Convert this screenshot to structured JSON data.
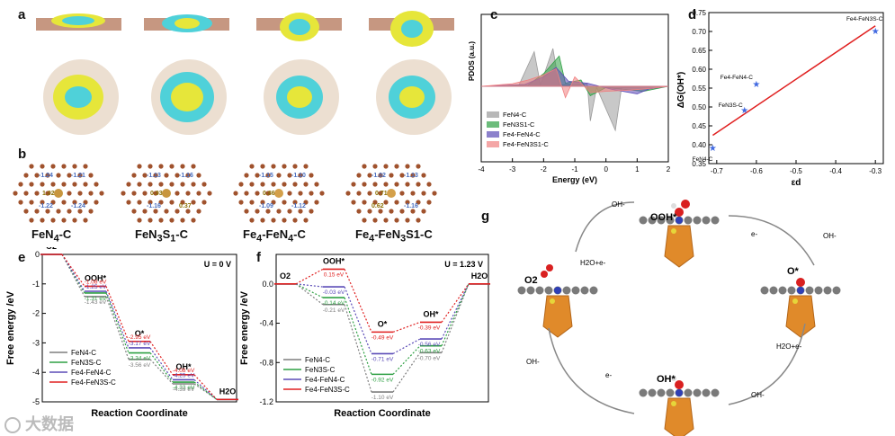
{
  "panel_labels": [
    "a",
    "b",
    "c",
    "d",
    "e",
    "f",
    "g"
  ],
  "structures": {
    "names": [
      "FeN4-C",
      "FeN3S1-C",
      "Fe4-FeN4-C",
      "Fe4-FeN3S1-C"
    ],
    "name_parts": [
      {
        "base": "FeN",
        "sub1": "4",
        "mid": "-C",
        "sub2": "",
        "end": ""
      },
      {
        "base": "FeN",
        "sub1": "3",
        "mid": "S",
        "sub2": "1",
        "end": "-C"
      },
      {
        "base": "Fe",
        "sub1": "4",
        "mid": "-FeN",
        "sub2": "4",
        "end": "-C"
      },
      {
        "base": "Fe",
        "sub1": "4",
        "mid": "-FeN",
        "sub2": "3",
        "end": "S1-C"
      }
    ],
    "charges": [
      [
        "-1.24",
        "-1.21",
        "1.02",
        "-1.22",
        "-1.24"
      ],
      [
        "-1.13",
        "-1.16",
        "0.93",
        "-1.16",
        "0.37"
      ],
      [
        "-1.15",
        "-1.10",
        "0.86",
        "-1.09",
        "-1.12"
      ],
      [
        "-1.02",
        "-1.13",
        "0.71",
        "0.62",
        "-1.16"
      ]
    ]
  },
  "chart_data": [
    {
      "panel": "c",
      "type": "line",
      "title": "",
      "xlabel": "Energy (eV)",
      "ylabel": "PDOS (a.u.)",
      "xlim": [
        -4,
        2
      ],
      "xticks": [
        "-4",
        "-3",
        "-2",
        "-1",
        "0",
        "1",
        "2"
      ],
      "legend": [
        "FeN4-C",
        "FeN3S1-C",
        "Fe4-FeN4-C",
        "Fe4-FeN3S1-C"
      ],
      "series_colors": [
        "#9a9a9a",
        "#2ea043",
        "#5b4bb7",
        "#f08080"
      ]
    },
    {
      "panel": "d",
      "type": "scatter",
      "xlabel": "εd",
      "ylabel": "ΔG(OH*)",
      "xlim": [
        -0.72,
        -0.28
      ],
      "ylim": [
        0.35,
        0.75
      ],
      "xticks": [
        "-0.7",
        "-0.6",
        "-0.5",
        "-0.4",
        "-0.3"
      ],
      "yticks": [
        "0.35",
        "0.40",
        "0.45",
        "0.50",
        "0.55",
        "0.60",
        "0.65",
        "0.70",
        "0.75"
      ],
      "points": [
        {
          "label": "FeN4-C",
          "x": -0.71,
          "y": 0.39
        },
        {
          "label": "FeN3S-C",
          "x": -0.63,
          "y": 0.49
        },
        {
          "label": "Fe4-FeN4-C",
          "x": -0.6,
          "y": 0.56
        },
        {
          "label": "Fe4-FeN3S-C",
          "x": -0.3,
          "y": 0.7
        }
      ],
      "fit_line": [
        [
          -0.71,
          0.425
        ],
        [
          -0.3,
          0.715
        ]
      ]
    },
    {
      "panel": "e",
      "type": "line",
      "title": "U = 0 V",
      "xlabel": "Reaction Coordinate",
      "ylabel": "Free energy /eV",
      "ylim": [
        -5,
        0
      ],
      "yticks": [
        "0",
        "-1",
        "-2",
        "-3",
        "-4",
        "-5"
      ],
      "states": [
        "O2",
        "OOH*",
        "O*",
        "OH*",
        "H2O"
      ],
      "series": [
        {
          "name": "FeN4-C",
          "color": "#7f7f7f",
          "values": [
            0,
            -1.43,
            -3.56,
            -4.39,
            -4.92
          ]
        },
        {
          "name": "FeN3S-C",
          "color": "#2ea043",
          "values": [
            0,
            -1.31,
            -3.34,
            -4.33,
            -4.92
          ]
        },
        {
          "name": "Fe4-FeN4-C",
          "color": "#5b4bb7",
          "values": [
            0,
            -1.25,
            -3.17,
            -4.25,
            -4.92
          ]
        },
        {
          "name": "Fe4-FeN3S-C",
          "color": "#e02020",
          "values": [
            0,
            -1.08,
            -2.95,
            -4.08,
            -4.92
          ]
        }
      ],
      "annotations": [
        "-1.08 eV",
        "-1.25 eV",
        "-1.31 eV",
        "-1.43 eV",
        "-2.95 eV",
        "-3.17 eV",
        "-3.34 eV",
        "-3.56 eV",
        "-4.08 eV",
        "-4.25 eV",
        "-4.33 eV",
        "-4.39 eV"
      ]
    },
    {
      "panel": "f",
      "type": "line",
      "title": "U = 1.23 V",
      "xlabel": "Reaction Coordinate",
      "ylabel": "Free energy /eV",
      "ylim": [
        -1.2,
        0.3
      ],
      "yticks": [
        "0.0",
        "-0.4",
        "-0.8",
        "-1.2"
      ],
      "states": [
        "O2",
        "OOH*",
        "O*",
        "OH*",
        "H2O"
      ],
      "series": [
        {
          "name": "FeN4-C",
          "color": "#7f7f7f",
          "values": [
            0,
            -0.21,
            -1.1,
            -0.7,
            0
          ]
        },
        {
          "name": "FeN3S-C",
          "color": "#2ea043",
          "values": [
            0,
            -0.14,
            -0.92,
            -0.63,
            0
          ]
        },
        {
          "name": "Fe4-FeN4-C",
          "color": "#5b4bb7",
          "values": [
            0,
            -0.03,
            -0.71,
            -0.56,
            0
          ]
        },
        {
          "name": "Fe4-FeN3S-C",
          "color": "#e02020",
          "values": [
            0,
            0.15,
            -0.49,
            -0.39,
            0
          ]
        }
      ],
      "annotations": [
        "0.15 eV",
        "-0.03 eV",
        "-0.14 eV",
        "-0.21 eV",
        "-0.49 eV",
        "-0.71 eV",
        "-0.92 eV",
        "-1.10 eV",
        "-0.39 eV",
        "-0.56 eV",
        "-0.63 eV",
        "-0.70 eV"
      ]
    }
  ],
  "legend_e": [
    "FeN4-C",
    "FeN3S-C",
    "Fe4-FeN4-C",
    "Fe4-FeN3S-C"
  ],
  "mechanism": {
    "intermediates": [
      "OOH*",
      "O*",
      "OH*",
      "O2"
    ],
    "steps": [
      "OH-",
      "e-",
      "OH-",
      "H2O+e-",
      "OH-",
      "e-",
      "OH-",
      "H2O+e-"
    ]
  },
  "watermark": "大数据"
}
